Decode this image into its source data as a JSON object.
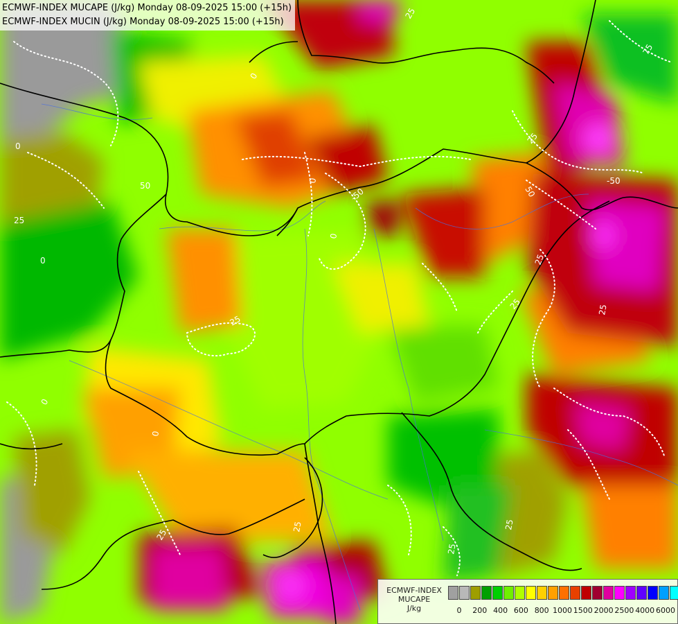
{
  "titles": {
    "line1": "ECMWF-INDEX MUCAPE (J/kg) Monday 08-09-2025 15:00 (+15h)",
    "line2": "ECMWF-INDEX MUCIN (J/kg) Monday 08-09-2025 15:00 (+15h)"
  },
  "legend": {
    "label_line1": "ECMWF-INDEX",
    "label_line2": "MUCAPE",
    "label_line3": "J/kg",
    "colors": [
      "#a0a0a0",
      "#b8b8b8",
      "#9e9e00",
      "#00a000",
      "#00d000",
      "#70f000",
      "#b0ff00",
      "#ffff00",
      "#ffd000",
      "#ffa000",
      "#ff7000",
      "#e84000",
      "#c00000",
      "#a00030",
      "#e000a0",
      "#ff00ff",
      "#a000ff",
      "#6000ff",
      "#0000ff",
      "#00a0ff",
      "#00ffff",
      "#ffffff"
    ],
    "tick_labels": [
      "0",
      "200",
      "400",
      "600",
      "800",
      "1000",
      "1500",
      "2000",
      "2500",
      "4000",
      "6000"
    ]
  },
  "contour_labels": [
    "0",
    "25",
    "50",
    "-50",
    "25",
    "0",
    "50",
    "25",
    "0",
    "25",
    "25",
    "25",
    "0",
    "0",
    "-50",
    "25",
    "25",
    "0",
    "25",
    "0",
    "75",
    "25",
    "25"
  ]
}
